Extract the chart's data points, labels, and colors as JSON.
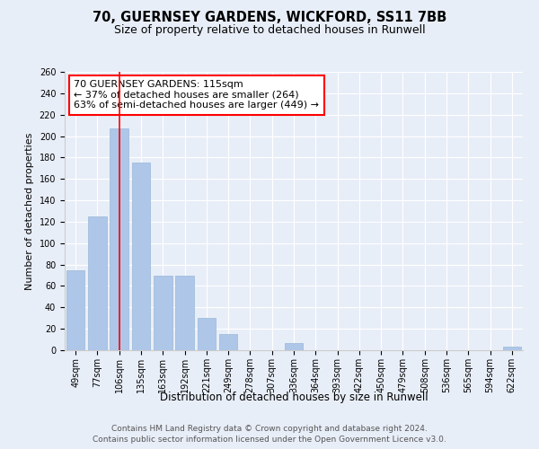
{
  "title1": "70, GUERNSEY GARDENS, WICKFORD, SS11 7BB",
  "title2": "Size of property relative to detached houses in Runwell",
  "xlabel": "Distribution of detached houses by size in Runwell",
  "ylabel": "Number of detached properties",
  "bins": [
    "49sqm",
    "77sqm",
    "106sqm",
    "135sqm",
    "163sqm",
    "192sqm",
    "221sqm",
    "249sqm",
    "278sqm",
    "307sqm",
    "336sqm",
    "364sqm",
    "393sqm",
    "422sqm",
    "450sqm",
    "479sqm",
    "508sqm",
    "536sqm",
    "565sqm",
    "594sqm",
    "622sqm"
  ],
  "values": [
    75,
    125,
    207,
    175,
    70,
    70,
    30,
    15,
    0,
    0,
    7,
    0,
    0,
    0,
    0,
    0,
    0,
    0,
    0,
    0,
    3
  ],
  "bar_color": "#aec6e8",
  "bar_edge_color": "#9ab8d8",
  "bar_width": 0.85,
  "red_line_x": 2,
  "annotation_text": "70 GUERNSEY GARDENS: 115sqm\n← 37% of detached houses are smaller (264)\n63% of semi-detached houses are larger (449) →",
  "annotation_box_color": "white",
  "annotation_border_color": "red",
  "ylim": [
    0,
    260
  ],
  "yticks": [
    0,
    20,
    40,
    60,
    80,
    100,
    120,
    140,
    160,
    180,
    200,
    220,
    240,
    260
  ],
  "bg_color": "#e8eef8",
  "plot_bg_color": "#e8eef8",
  "grid_color": "#ffffff",
  "footer1": "Contains HM Land Registry data © Crown copyright and database right 2024.",
  "footer2": "Contains public sector information licensed under the Open Government Licence v3.0.",
  "title1_fontsize": 10.5,
  "title2_fontsize": 9,
  "xlabel_fontsize": 8.5,
  "ylabel_fontsize": 8,
  "tick_fontsize": 7,
  "annotation_fontsize": 8,
  "footer_fontsize": 6.5
}
